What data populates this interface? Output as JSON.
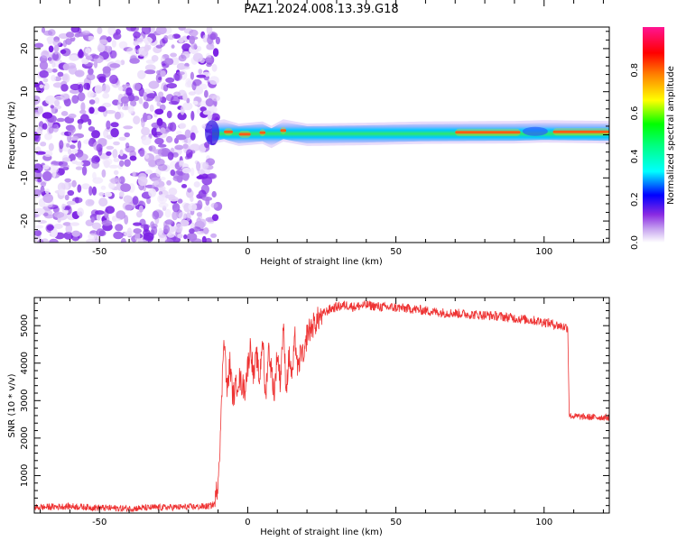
{
  "title": "PAZ1.2024.008.13.39.G18",
  "chart_data": [
    {
      "type": "heatmap",
      "xlabel": "Height of straight line (km)",
      "ylabel": "Frequency (Hz)",
      "xlim": [
        -72,
        122
      ],
      "ylim": [
        -25,
        25
      ],
      "xticks": [
        -50,
        0,
        50,
        100
      ],
      "yticks": [
        -20,
        -10,
        0,
        10,
        20
      ],
      "colorbar": {
        "label": "Normalized spectral amplitude",
        "range": [
          0,
          1
        ],
        "ticks": [
          "0.0",
          "0.2",
          "0.4",
          "0.6",
          "0.8"
        ],
        "colors": [
          "#ffffff",
          "#8a2be2",
          "#0000ff",
          "#00ffff",
          "#00ff00",
          "#ffff00",
          "#ff8000",
          "#ff0000",
          "#ff1493"
        ]
      },
      "regions": [
        {
          "name": "noise",
          "x_range": [
            -72,
            -12
          ],
          "freq_range": [
            -25,
            25
          ],
          "amplitude_range": [
            0.05,
            0.25
          ]
        },
        {
          "name": "signal band",
          "x_range": [
            -12,
            122
          ],
          "center_freq": 0.5,
          "band_width_hz": 2
        }
      ],
      "band_center_freq": [
        {
          "x": -12,
          "f": 0.5
        },
        {
          "x": -8,
          "f": 1.0
        },
        {
          "x": -3,
          "f": 0.0
        },
        {
          "x": 5,
          "f": 0.5
        },
        {
          "x": 8,
          "f": -0.5
        },
        {
          "x": 12,
          "f": 1.0
        },
        {
          "x": 20,
          "f": 0.0
        },
        {
          "x": 40,
          "f": 0.2
        },
        {
          "x": 60,
          "f": 0.5
        },
        {
          "x": 90,
          "f": 0.6
        },
        {
          "x": 100,
          "f": 0.8
        },
        {
          "x": 122,
          "f": 0.6
        }
      ]
    },
    {
      "type": "line",
      "xlabel": "Height of straight line (km)",
      "ylabel": "SNR (10 * v/v)",
      "xlim": [
        -72,
        122
      ],
      "ylim": [
        0,
        5750
      ],
      "xticks": [
        -50,
        0,
        50,
        100
      ],
      "yticks": [
        1000,
        2000,
        3000,
        4000,
        5000
      ],
      "color": "#ee3333",
      "series": [
        {
          "x": [
            -72,
            -60,
            -50,
            -40,
            -30,
            -20,
            -13,
            -11,
            -10,
            -9,
            -8,
            -7,
            -6,
            -5,
            -3,
            -1,
            1,
            2,
            3,
            4,
            5,
            6,
            7,
            8,
            9,
            10,
            11,
            12,
            13,
            14,
            15,
            16,
            17,
            18,
            19,
            20,
            22,
            24,
            26,
            28,
            30,
            33,
            36,
            40,
            45,
            50,
            55,
            60,
            65,
            70,
            75,
            80,
            85,
            90,
            95,
            100,
            105,
            108,
            108.5,
            110,
            115,
            122
          ],
          "y": [
            150,
            180,
            140,
            120,
            150,
            160,
            180,
            250,
            900,
            2500,
            4900,
            3200,
            4000,
            3100,
            3600,
            3300,
            4500,
            3600,
            4200,
            3500,
            4800,
            3000,
            4400,
            3800,
            3200,
            4300,
            3500,
            5000,
            3300,
            4200,
            3600,
            4700,
            3700,
            4400,
            4000,
            4800,
            5000,
            5200,
            5350,
            5450,
            5500,
            5550,
            5500,
            5550,
            5500,
            5480,
            5450,
            5400,
            5350,
            5330,
            5300,
            5280,
            5250,
            5200,
            5150,
            5100,
            5000,
            4950,
            2600,
            2580,
            2560,
            2550
          ]
        }
      ]
    }
  ]
}
